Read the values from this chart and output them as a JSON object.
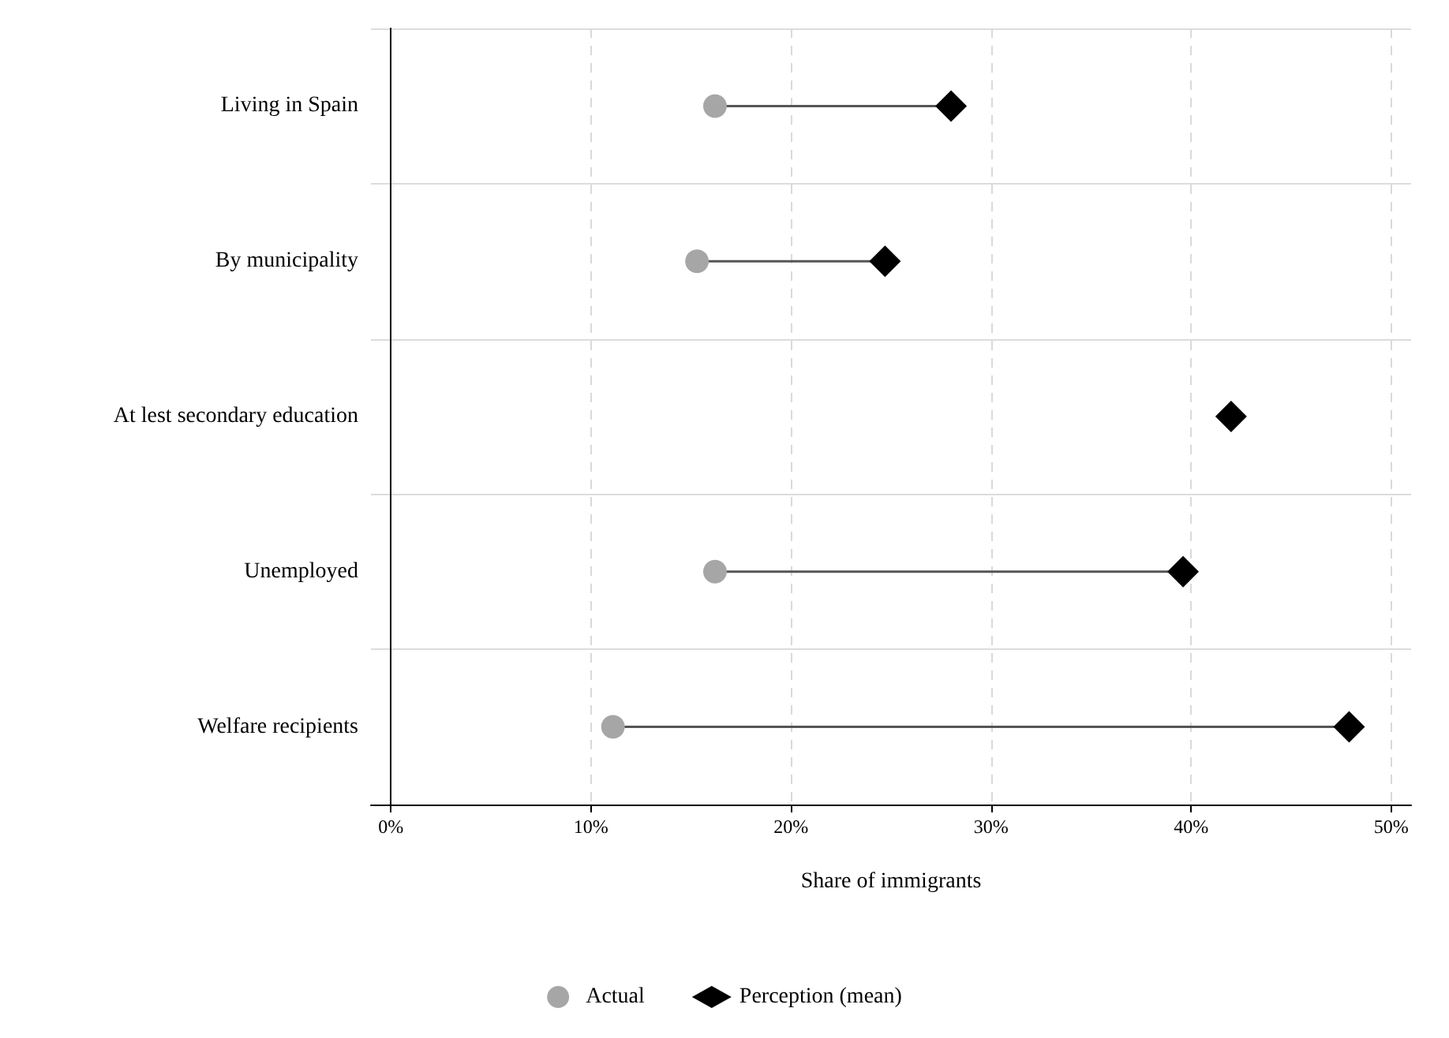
{
  "chart_data": {
    "type": "scatter",
    "orientation": "horizontal",
    "xlabel": "Share of immigrants",
    "categories": [
      "Living in Spain",
      "By municipality",
      "At lest secondary education",
      "Unemployed",
      "Welfare recipients"
    ],
    "series": [
      {
        "name": "Actual",
        "color": "#a6a6a6",
        "marker": "circle",
        "values": [
          16.2,
          15.3,
          null,
          16.2,
          11.1
        ]
      },
      {
        "name": "Perception (mean)",
        "color": "#000000",
        "marker": "diamond",
        "values": [
          28.0,
          24.7,
          42.0,
          39.6,
          47.9
        ]
      }
    ],
    "xlim": [
      -1,
      51
    ],
    "xticks": [
      {
        "value": 0,
        "label": "0%"
      },
      {
        "value": 10,
        "label": "10%"
      },
      {
        "value": 20,
        "label": "20%"
      },
      {
        "value": 30,
        "label": "30%"
      },
      {
        "value": 40,
        "label": "40%"
      },
      {
        "value": 50,
        "label": "50%"
      }
    ],
    "grid": true,
    "legend": "bottom"
  }
}
